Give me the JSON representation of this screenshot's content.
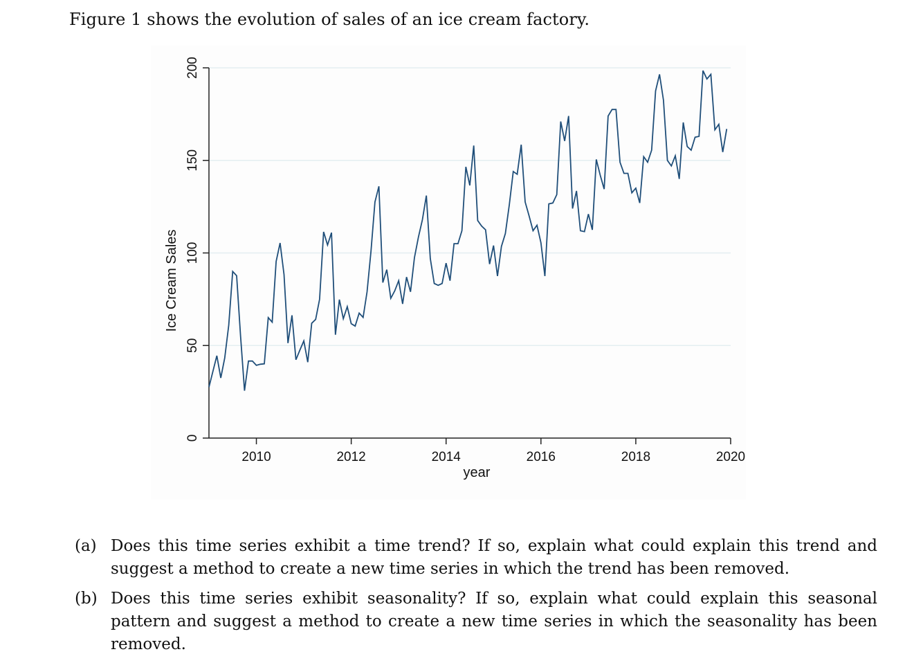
{
  "intro_text": "Figure 1 shows the evolution of sales of an ice cream factory.",
  "questions": [
    {
      "marker": "(a)",
      "text": "Does this time series exhibit a time trend? If so, explain what could explain this trend and suggest a method to create a new time series in which the trend has been removed."
    },
    {
      "marker": "(b)",
      "text": "Does this time series exhibit seasonality? If so, explain what could explain this seasonal pattern and suggest a method to create a new time series in which the seasonality has been removed."
    }
  ],
  "chart_data": {
    "type": "line",
    "title": "",
    "xlabel": "year",
    "ylabel": "Ice Cream Sales",
    "xlim": [
      2009,
      2020
    ],
    "ylim": [
      0,
      200
    ],
    "x_ticks": [
      2010,
      2012,
      2014,
      2016,
      2018,
      2020
    ],
    "y_ticks": [
      0,
      50,
      100,
      150,
      200
    ],
    "grid": "horizontal",
    "legend": "none",
    "line_color": "#1f4e79",
    "frequency": "monthly",
    "x_start": 2009.0,
    "x_step": 0.0833333,
    "series": [
      {
        "name": "Ice Cream Sales",
        "values": [
          27.5,
          36,
          44.5,
          32.5,
          43.3,
          61,
          90,
          87.7,
          55,
          25.6,
          41.6,
          41.6,
          39.3,
          39.9,
          40.1,
          65.1,
          62.6,
          95.4,
          105.4,
          88.3,
          51.3,
          66.3,
          42.3,
          47.5,
          52.5,
          41,
          62,
          64.1,
          75,
          111.4,
          104.3,
          111,
          55.8,
          74.8,
          64.5,
          71,
          61.8,
          60.5,
          67.5,
          65.2,
          79,
          101,
          127.5,
          136,
          84,
          91,
          75.5,
          79.5,
          85,
          72.5,
          87,
          79,
          97.5,
          108.5,
          118,
          131,
          97,
          83.5,
          82.5,
          83.5,
          94.5,
          85,
          105,
          105,
          112,
          146.5,
          136.5,
          158,
          117.5,
          114.5,
          112.5,
          94,
          104,
          87.5,
          103.5,
          110.5,
          126,
          144,
          142.5,
          158.5,
          127.5,
          120,
          112,
          115,
          105.5,
          87.5,
          126.5,
          127,
          131.5,
          171,
          160.5,
          174,
          124,
          133.5,
          112,
          111.5,
          121,
          112.5,
          150.5,
          142,
          134.5,
          174,
          177.5,
          177.5,
          149,
          143,
          143,
          132.5,
          135,
          127,
          152,
          149,
          155.5,
          187.5,
          196.5,
          182.5,
          150,
          147,
          152.5,
          140,
          170.5,
          157.5,
          155.5,
          162.5,
          163,
          198.5,
          194,
          196.5,
          166.5,
          169.5,
          154.5,
          167
        ]
      }
    ]
  }
}
